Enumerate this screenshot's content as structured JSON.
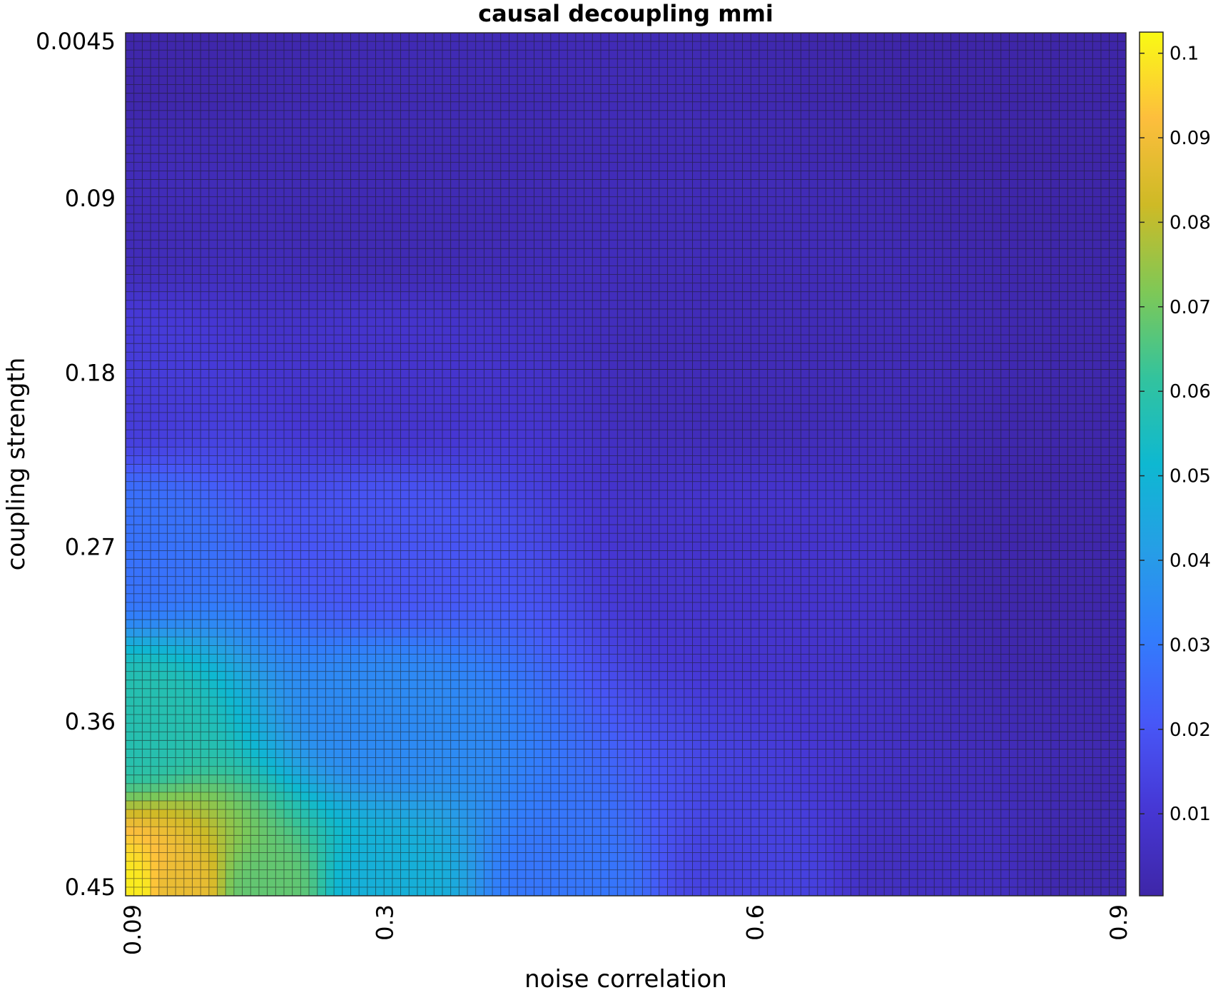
{
  "chart_data": {
    "type": "heatmap",
    "title": "causal decoupling mmi",
    "xlabel": "noise correlation",
    "ylabel": "coupling strength",
    "grid": true,
    "x_ticks": [
      "0.09",
      "0.3",
      "0.6",
      "0.9"
    ],
    "x_tick_values": [
      0.09,
      0.3,
      0.6,
      0.9
    ],
    "xlim": [
      0.09,
      0.9
    ],
    "y_ticks": [
      "0.0045",
      "0.09",
      "0.18",
      "0.27",
      "0.36",
      "0.45"
    ],
    "y_tick_values": [
      0.0045,
      0.09,
      0.18,
      0.27,
      0.36,
      0.45
    ],
    "ylim": [
      0.0045,
      0.45
    ],
    "y_direction": "reverse",
    "n_cols": 120,
    "n_rows": 100,
    "colormap": "parula",
    "colorbar": {
      "ticks": [
        "0.01",
        "0.02",
        "0.03",
        "0.04",
        "0.05",
        "0.06",
        "0.07",
        "0.08",
        "0.09",
        "0.1"
      ],
      "tick_values": [
        0.01,
        0.02,
        0.03,
        0.04,
        0.05,
        0.06,
        0.07,
        0.08,
        0.09,
        0.1
      ],
      "range": [
        0.0003,
        0.1025
      ],
      "placement": "right"
    },
    "value_samples": [
      {
        "x": 0.09,
        "y": 0.0045,
        "value": 0.001
      },
      {
        "x": 0.09,
        "y": 0.09,
        "value": 0.004
      },
      {
        "x": 0.09,
        "y": 0.18,
        "value": 0.012
      },
      {
        "x": 0.09,
        "y": 0.27,
        "value": 0.028
      },
      {
        "x": 0.09,
        "y": 0.36,
        "value": 0.058
      },
      {
        "x": 0.09,
        "y": 0.45,
        "value": 0.1
      },
      {
        "x": 0.13,
        "y": 0.45,
        "value": 0.088
      },
      {
        "x": 0.2,
        "y": 0.45,
        "value": 0.068
      },
      {
        "x": 0.3,
        "y": 0.45,
        "value": 0.048
      },
      {
        "x": 0.45,
        "y": 0.45,
        "value": 0.029
      },
      {
        "x": 0.6,
        "y": 0.45,
        "value": 0.014
      },
      {
        "x": 0.75,
        "y": 0.45,
        "value": 0.006
      },
      {
        "x": 0.9,
        "y": 0.45,
        "value": 0.002
      },
      {
        "x": 0.3,
        "y": 0.36,
        "value": 0.035
      },
      {
        "x": 0.3,
        "y": 0.27,
        "value": 0.02
      },
      {
        "x": 0.3,
        "y": 0.18,
        "value": 0.009
      },
      {
        "x": 0.3,
        "y": 0.09,
        "value": 0.003
      },
      {
        "x": 0.6,
        "y": 0.27,
        "value": 0.009
      },
      {
        "x": 0.6,
        "y": 0.18,
        "value": 0.004
      },
      {
        "x": 0.9,
        "y": 0.27,
        "value": 0.001
      },
      {
        "x": 0.9,
        "y": 0.0045,
        "value": 0.0003
      }
    ]
  }
}
